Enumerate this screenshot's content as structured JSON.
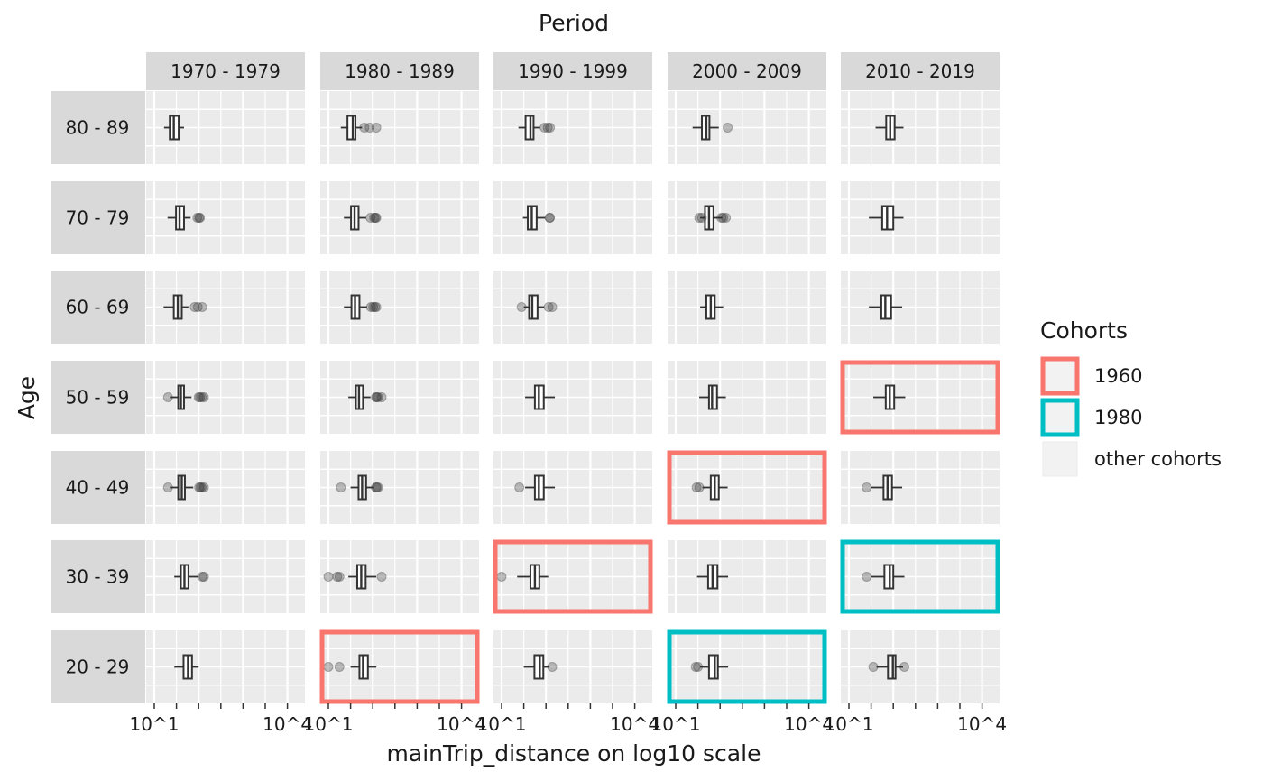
{
  "chart_data": {
    "type": "boxplot-facet-grid",
    "title": "",
    "col_title": "Period",
    "row_title": "Age",
    "xlabel": "mainTrip_distance on log10 scale",
    "x_scale": "log10",
    "x_tick_labels": [
      "10^1",
      "10^4"
    ],
    "x_tick_values": [
      10,
      10000
    ],
    "periods": [
      "1970 - 1979",
      "1980 - 1989",
      "1990 - 1999",
      "2000 - 2009",
      "2010 - 2019"
    ],
    "ages": [
      "80 - 89",
      "70 - 79",
      "60 - 69",
      "50 - 59",
      "40 - 49",
      "30 - 39",
      "20 - 29"
    ],
    "legend": {
      "title": "Cohorts",
      "position": "right",
      "items": [
        {
          "label": "1960",
          "color": "#F8766D"
        },
        {
          "label": "1980",
          "color": "#00BFC4"
        },
        {
          "label": "other cohorts",
          "color": "#EBEBEB"
        }
      ]
    },
    "colors": {
      "cohort_1960": "#F8766D",
      "cohort_1980": "#00BFC4",
      "panel_bg": "#EBEBEB",
      "strip_bg": "#D9D9D9"
    },
    "boxes": [
      [
        {
          "lw": 1.22,
          "q1": 1.35,
          "med": 1.44,
          "q3": 1.55,
          "uw": 1.67,
          "out": []
        },
        {
          "lw": 1.28,
          "q1": 1.43,
          "med": 1.55,
          "q3": 1.61,
          "uw": 1.76,
          "out": [
            1.81,
            1.93,
            2.08
          ]
        },
        {
          "lw": 1.38,
          "q1": 1.54,
          "med": 1.65,
          "q3": 1.72,
          "uw": 1.87,
          "out": [
            1.97,
            2.04,
            2.09
          ]
        },
        {
          "lw": 1.38,
          "q1": 1.59,
          "med": 1.69,
          "q3": 1.76,
          "uw": 1.97,
          "out": [
            2.17
          ]
        },
        {
          "lw": 1.6,
          "q1": 1.84,
          "med": 1.93,
          "q3": 2.03,
          "uw": 2.23,
          "out": []
        }
      ],
      [
        {
          "lw": 1.3,
          "q1": 1.49,
          "med": 1.57,
          "q3": 1.67,
          "uw": 1.82,
          "out": [
            1.97,
            2.01,
            2.03
          ]
        },
        {
          "lw": 1.35,
          "q1": 1.51,
          "med": 1.59,
          "q3": 1.68,
          "uw": 1.85,
          "out": [
            1.95,
            2.03,
            2.06,
            2.08
          ]
        },
        {
          "lw": 1.48,
          "q1": 1.59,
          "med": 1.68,
          "q3": 1.79,
          "uw": 1.98,
          "out": [
            2.08,
            2.09
          ]
        },
        {
          "lw": 1.55,
          "q1": 1.66,
          "med": 1.75,
          "q3": 1.85,
          "uw": 2.05,
          "out": [
            1.53,
            1.59,
            2.03,
            2.07,
            2.13
          ]
        },
        {
          "lw": 1.45,
          "q1": 1.75,
          "med": 1.86,
          "q3": 2.0,
          "uw": 2.23,
          "out": []
        }
      ],
      [
        {
          "lw": 1.21,
          "q1": 1.44,
          "med": 1.53,
          "q3": 1.62,
          "uw": 1.77,
          "out": [
            1.91,
            1.98,
            2.08
          ]
        },
        {
          "lw": 1.35,
          "q1": 1.52,
          "med": 1.6,
          "q3": 1.7,
          "uw": 1.87,
          "out": [
            1.96,
            2.01,
            2.05,
            2.08
          ]
        },
        {
          "lw": 1.5,
          "q1": 1.62,
          "med": 1.69,
          "q3": 1.81,
          "uw": 1.96,
          "out": [
            1.45,
            2.06,
            2.14
          ]
        },
        {
          "lw": 1.55,
          "q1": 1.69,
          "med": 1.79,
          "q3": 1.88,
          "uw": 2.07,
          "out": []
        },
        {
          "lw": 1.45,
          "q1": 1.73,
          "med": 1.82,
          "q3": 1.95,
          "uw": 2.2,
          "out": []
        }
      ],
      [
        {
          "lw": 1.35,
          "q1": 1.54,
          "med": 1.6,
          "q3": 1.67,
          "uw": 1.84,
          "out": [
            1.31,
            2.0,
            2.03,
            2.07,
            2.12
          ]
        },
        {
          "lw": 1.45,
          "q1": 1.62,
          "med": 1.69,
          "q3": 1.78,
          "uw": 1.95,
          "out": [
            2.07,
            2.09,
            2.12,
            2.2
          ]
        },
        {
          "lw": 1.53,
          "q1": 1.75,
          "med": 1.84,
          "q3": 1.95,
          "uw": 2.2,
          "out": []
        },
        {
          "lw": 1.53,
          "q1": 1.75,
          "med": 1.82,
          "q3": 1.93,
          "uw": 2.13,
          "out": []
        },
        {
          "lw": 1.55,
          "q1": 1.83,
          "med": 1.92,
          "q3": 2.02,
          "uw": 2.27,
          "out": []
        }
      ],
      [
        {
          "lw": 1.35,
          "q1": 1.54,
          "med": 1.62,
          "q3": 1.69,
          "uw": 1.88,
          "out": [
            1.31,
            2.01,
            2.04,
            2.07,
            2.12
          ]
        },
        {
          "lw": 1.5,
          "q1": 1.68,
          "med": 1.76,
          "q3": 1.85,
          "uw": 2.03,
          "out": [
            1.28,
            2.07,
            2.09,
            2.12
          ]
        },
        {
          "lw": 1.53,
          "q1": 1.75,
          "med": 1.84,
          "q3": 1.95,
          "uw": 2.2,
          "out": [
            1.4
          ]
        },
        {
          "lw": 1.6,
          "q1": 1.79,
          "med": 1.88,
          "q3": 1.97,
          "uw": 2.17,
          "out": [
            1.47,
            1.53
          ]
        },
        {
          "lw": 1.5,
          "q1": 1.78,
          "med": 1.87,
          "q3": 1.97,
          "uw": 2.2,
          "out": [
            1.4
          ]
        }
      ],
      [
        {
          "lw": 1.45,
          "q1": 1.6,
          "med": 1.68,
          "q3": 1.77,
          "uw": 2.0,
          "out": [
            2.08,
            2.12
          ]
        },
        {
          "lw": 1.45,
          "q1": 1.65,
          "med": 1.74,
          "q3": 1.84,
          "uw": 2.08,
          "out": [
            1.0,
            1.2,
            1.25,
            2.2
          ]
        },
        {
          "lw": 1.35,
          "q1": 1.65,
          "med": 1.75,
          "q3": 1.85,
          "uw": 2.05,
          "out": [
            1.0
          ]
        },
        {
          "lw": 1.48,
          "q1": 1.73,
          "med": 1.83,
          "q3": 1.94,
          "uw": 2.18,
          "out": []
        },
        {
          "lw": 1.5,
          "q1": 1.8,
          "med": 1.92,
          "q3": 2.0,
          "uw": 2.25,
          "out": [
            1.4
          ]
        }
      ],
      [
        {
          "lw": 1.45,
          "q1": 1.66,
          "med": 1.76,
          "q3": 1.85,
          "uw": 2.0,
          "out": []
        },
        {
          "lw": 1.5,
          "q1": 1.7,
          "med": 1.78,
          "q3": 1.89,
          "uw": 2.08,
          "out": [
            1.0,
            1.25
          ]
        },
        {
          "lw": 1.5,
          "q1": 1.74,
          "med": 1.86,
          "q3": 1.94,
          "uw": 2.08,
          "out": [
            2.14
          ]
        },
        {
          "lw": 1.55,
          "q1": 1.75,
          "med": 1.88,
          "q3": 1.95,
          "uw": 2.18,
          "out": [
            1.45,
            1.5
          ]
        },
        {
          "lw": 1.62,
          "q1": 1.88,
          "med": 1.99,
          "q3": 2.05,
          "uw": 2.22,
          "out": [
            1.55,
            2.25
          ]
        }
      ]
    ],
    "highlights": [
      {
        "age": "50 - 59",
        "period": "2010 - 2019",
        "cohort": "1960"
      },
      {
        "age": "40 - 49",
        "period": "2000 - 2009",
        "cohort": "1960"
      },
      {
        "age": "30 - 39",
        "period": "1990 - 1999",
        "cohort": "1960"
      },
      {
        "age": "20 - 29",
        "period": "1980 - 1989",
        "cohort": "1960"
      },
      {
        "age": "30 - 39",
        "period": "2010 - 2019",
        "cohort": "1980"
      },
      {
        "age": "20 - 29",
        "period": "2000 - 2009",
        "cohort": "1980"
      }
    ]
  }
}
